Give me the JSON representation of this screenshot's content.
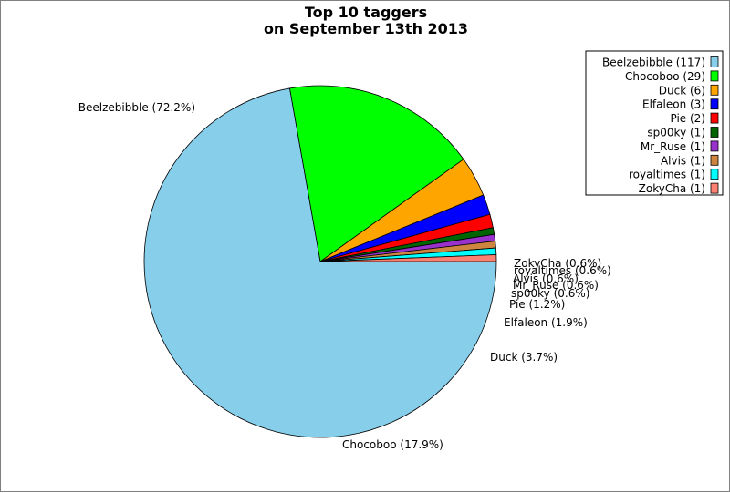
{
  "chart_data": {
    "type": "pie",
    "title": [
      "Top 10 taggers",
      "on September 13th 2013"
    ],
    "slices": [
      {
        "name": "Beelzebibble",
        "count": 117,
        "percent": 72.2,
        "color": "#87CEEB"
      },
      {
        "name": "Chocoboo",
        "count": 29,
        "percent": 17.9,
        "color": "#00FF00"
      },
      {
        "name": "Duck",
        "count": 6,
        "percent": 3.7,
        "color": "#FFA500"
      },
      {
        "name": "Elfaleon",
        "count": 3,
        "percent": 1.9,
        "color": "#0000FF"
      },
      {
        "name": "Pie",
        "count": 2,
        "percent": 1.2,
        "color": "#FF0000"
      },
      {
        "name": "sp00ky",
        "count": 1,
        "percent": 0.6,
        "color": "#006400"
      },
      {
        "name": "Mr_Ruse",
        "count": 1,
        "percent": 0.6,
        "color": "#9932CC"
      },
      {
        "name": "Alvis",
        "count": 1,
        "percent": 0.6,
        "color": "#CD853F"
      },
      {
        "name": "royaltimes",
        "count": 1,
        "percent": 0.6,
        "color": "#00FFFF"
      },
      {
        "name": "ZokyCha",
        "count": 1,
        "percent": 0.6,
        "color": "#FA8072"
      }
    ],
    "legend_placement": "top-right",
    "slice_labels": [
      "Beelzebibble (72.2%)",
      "Chocoboo (17.9%)",
      "Duck (3.7%)",
      "Elfaleon (1.9%)",
      "Pie (1.2%)",
      "sp00ky (0.6%)",
      "Mr_Ruse (0.6%)",
      "Alvis (0.6%)",
      "royaltimes (0.6%)",
      "ZokyCha (0.6%)"
    ],
    "legend_entries": [
      "Beelzebibble (117)",
      "Chocoboo (29)",
      "Duck (6)",
      "Elfaleon (3)",
      "Pie (2)",
      "sp00ky (1)",
      "Mr_Ruse (1)",
      "Alvis (1)",
      "royaltimes (1)",
      "ZokyCha (1)"
    ]
  }
}
